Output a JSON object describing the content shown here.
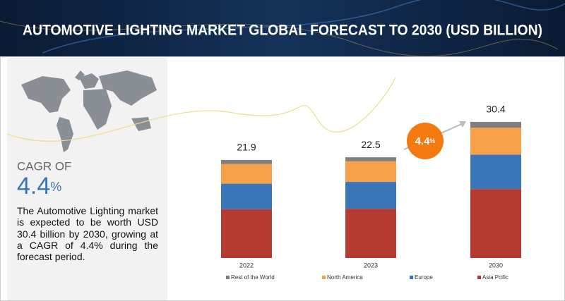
{
  "chart_data": {
    "type": "bar",
    "stacked": true,
    "title": "AUTOMOTIVE LIGHTING MARKET GLOBAL FORECAST TO 2030 (USD BILLION)",
    "categories": [
      "2022",
      "2023",
      "2030"
    ],
    "totals": [
      "21.9",
      "22.5",
      "30.4"
    ],
    "series": [
      {
        "name": "Rest of the World",
        "color": "#7f7f7f",
        "values": [
          0.9,
          0.9,
          1.3
        ]
      },
      {
        "name": "North America",
        "color": "#f7a04a",
        "values": [
          4.4,
          4.6,
          6.0
        ]
      },
      {
        "name": "Europe",
        "color": "#3a75b8",
        "values": [
          5.7,
          6.0,
          7.7
        ]
      },
      {
        "name": "Asia Pcific",
        "color": "#b33b32",
        "values": [
          10.9,
          11.0,
          15.4
        ]
      }
    ],
    "badge": {
      "number": "4.4",
      "unit": "%"
    }
  },
  "side_panel": {
    "cagr_label": "CAGR OF",
    "cagr_number": "4.4",
    "cagr_unit": "%",
    "description": "The Automotive Lighting market is expected to be worth USD 30.4 billion by 2030, growing at a CAGR of 4.4% during the forecast period."
  }
}
